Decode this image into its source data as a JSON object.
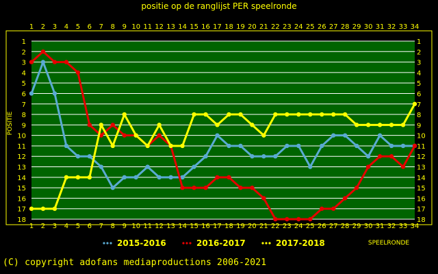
{
  "page": {
    "title": "positie op de ranglijst PER speelronde",
    "copyright": "(C) copyright adofans mediaproductions 2006-2021"
  },
  "chart_data": {
    "type": "line",
    "title": "positie op de ranglijst PER speelronde",
    "xlabel": "SPEELRONDE",
    "ylabel": "POSITIE",
    "x": [
      1,
      2,
      3,
      4,
      5,
      6,
      7,
      8,
      9,
      10,
      11,
      12,
      13,
      14,
      15,
      16,
      17,
      18,
      19,
      20,
      21,
      22,
      23,
      24,
      25,
      26,
      27,
      28,
      29,
      30,
      31,
      32,
      33,
      34
    ],
    "xlim": [
      1,
      34
    ],
    "ylim": [
      1,
      18
    ],
    "y_inverted": true,
    "y_ticks": [
      1,
      2,
      3,
      4,
      5,
      6,
      7,
      8,
      9,
      10,
      11,
      12,
      13,
      14,
      15,
      16,
      17,
      18
    ],
    "grid": true,
    "legend_position": "bottom",
    "colors": {
      "background": "#000000",
      "plot_bg": "#006400",
      "grid": "#ffffff",
      "text": "#ffff00"
    },
    "series": [
      {
        "name": "2015-2016",
        "color": "#5aaad2",
        "values": [
          6,
          3,
          6,
          11,
          12,
          12,
          13,
          15,
          14,
          14,
          13,
          14,
          14,
          14,
          13,
          12,
          10,
          11,
          11,
          12,
          12,
          12,
          11,
          11,
          13,
          11,
          10,
          10,
          11,
          12,
          10,
          11,
          11,
          11
        ]
      },
      {
        "name": "2016-2017",
        "color": "#e60000",
        "values": [
          3,
          2,
          3,
          3,
          4,
          9,
          10,
          9,
          10,
          10,
          11,
          10,
          11,
          15,
          15,
          15,
          14,
          14,
          15,
          15,
          16,
          18,
          18,
          18,
          18,
          17,
          17,
          16,
          15,
          13,
          12,
          12,
          13,
          11
        ]
      },
      {
        "name": "2017-2018",
        "color": "#ffff00",
        "values": [
          17,
          17,
          17,
          14,
          14,
          14,
          9,
          11,
          8,
          10,
          11,
          9,
          11,
          11,
          8,
          8,
          9,
          8,
          8,
          9,
          10,
          8,
          8,
          8,
          8,
          8,
          8,
          8,
          9,
          9,
          9,
          9,
          9,
          7
        ]
      }
    ]
  }
}
